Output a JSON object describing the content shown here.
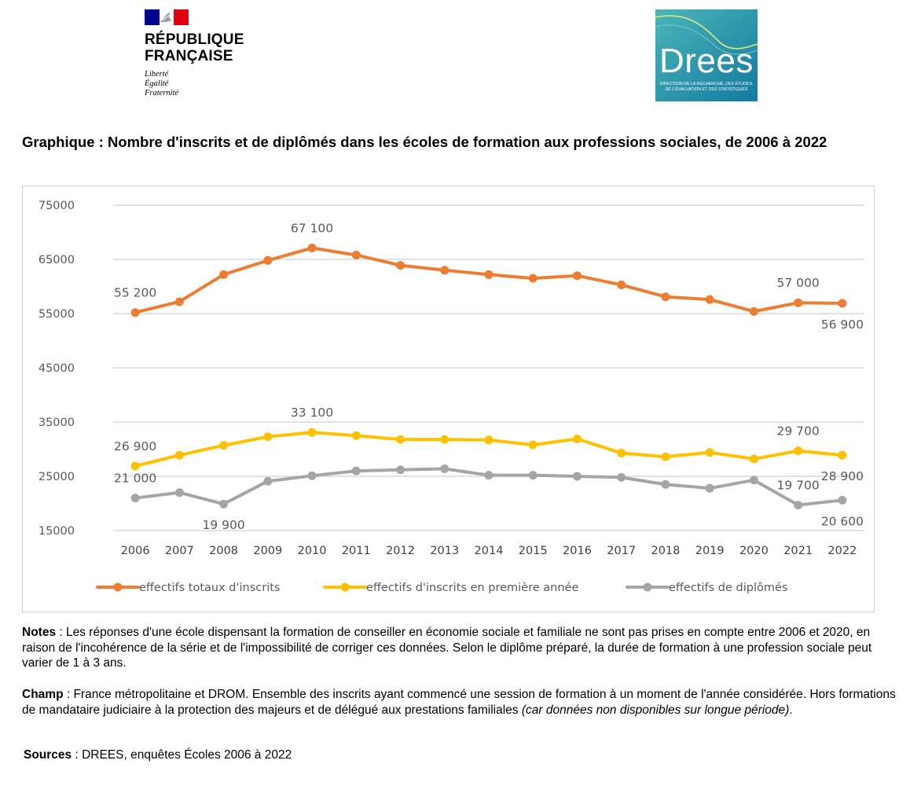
{
  "header": {
    "rf_name_line1": "RÉPUBLIQUE",
    "rf_name_line2": "FRANÇAISE",
    "rf_motto": [
      "Liberté",
      "Égalité",
      "Fraternité"
    ],
    "drees_word": "Drees",
    "drees_tagline": [
      "DIRECTION DE LA RECHERCHE, DES ÉTUDES,",
      "DE L'ÉVALUATION ET DES STATISTIQUES"
    ]
  },
  "title": "Graphique : Nombre d'inscrits et de diplômés dans les écoles de formation aux professions sociales, de 2006 à 2022",
  "chart_data": {
    "type": "line",
    "title": "Graphique : Nombre d'inscrits et de diplômés dans les écoles de formation aux professions sociales, de 2006 à 2022",
    "xlabel": "",
    "ylabel": "",
    "categories": [
      "2006",
      "2007",
      "2008",
      "2009",
      "2010",
      "2011",
      "2012",
      "2013",
      "2014",
      "2015",
      "2016",
      "2017",
      "2018",
      "2019",
      "2020",
      "2021",
      "2022"
    ],
    "ylim": [
      15000,
      75000
    ],
    "yticks": [
      15000,
      25000,
      35000,
      45000,
      55000,
      65000,
      75000
    ],
    "ytick_labels": [
      "15000",
      "25000",
      "35000",
      "45000",
      "55000",
      "65000",
      "75000"
    ],
    "grid": "horizontal",
    "legend_position": "bottom",
    "series": [
      {
        "name": "effectifs totaux d'inscrits",
        "color": "#ed7d31",
        "values": [
          55200,
          57200,
          62200,
          64800,
          67100,
          65800,
          63900,
          63000,
          62200,
          61500,
          62000,
          60300,
          58100,
          57600,
          55400,
          57000,
          56900
        ],
        "labels": [
          {
            "index": 0,
            "text": "55 200",
            "pos": "above"
          },
          {
            "index": 4,
            "text": "67 100",
            "pos": "above"
          },
          {
            "index": 15,
            "text": "57 000",
            "pos": "above"
          },
          {
            "index": 16,
            "text": "56 900",
            "pos": "below"
          }
        ]
      },
      {
        "name": "effectifs d'inscrits en première année",
        "color": "#ffc000",
        "values": [
          26900,
          28900,
          30700,
          32300,
          33100,
          32500,
          31800,
          31800,
          31700,
          30800,
          31900,
          29300,
          28600,
          29400,
          28200,
          29700,
          28900
        ],
        "labels": [
          {
            "index": 0,
            "text": "26 900",
            "pos": "above"
          },
          {
            "index": 4,
            "text": "33 100",
            "pos": "above"
          },
          {
            "index": 15,
            "text": "29 700",
            "pos": "above"
          },
          {
            "index": 16,
            "text": "28 900",
            "pos": "below"
          }
        ]
      },
      {
        "name": "effectifs de diplômés",
        "color": "#a5a5a5",
        "values": [
          21000,
          22000,
          19900,
          24100,
          25100,
          26000,
          26200,
          26400,
          25200,
          25200,
          25000,
          24800,
          23500,
          22800,
          24300,
          19700,
          20600
        ],
        "labels": [
          {
            "index": 0,
            "text": "21 000",
            "pos": "above"
          },
          {
            "index": 2,
            "text": "19 900",
            "pos": "below"
          },
          {
            "index": 15,
            "text": "19 700",
            "pos": "above"
          },
          {
            "index": 16,
            "text": "20 600",
            "pos": "below"
          }
        ]
      }
    ]
  },
  "notes": {
    "label": "Notes",
    "text": " : Les réponses d'une école dispensant la formation de conseiller en économie sociale et familiale ne sont pas prises en compte entre 2006 et 2020, en raison de l'incohérence de la série et de l'impossibilité de corriger ces données. Selon le diplôme préparé, la durée de formation à une profession sociale peut varier de 1 à 3 ans."
  },
  "champ": {
    "label": "Champ",
    "text": " : France métropolitaine et DROM. Ensemble des inscrits ayant commencé une session de formation à un moment de l'année considérée. Hors formations de mandataire judiciaire à la protection des majeurs et de délégué aux prestations familiales ",
    "italic_text": "(car données non disponibles sur longue période)",
    "end": "."
  },
  "sources": {
    "label": "Sources",
    "text": " : DREES, enquêtes Écoles 2006 à 2022"
  },
  "colors": {
    "orange": "#ed7d31",
    "yellow": "#ffc000",
    "grey": "#a5a5a5",
    "grid": "#d9d9d9",
    "axis_text": "#595959",
    "drees_blue": "#1c8fa3",
    "rf_blue": "#000091",
    "rf_red": "#e1000f"
  }
}
